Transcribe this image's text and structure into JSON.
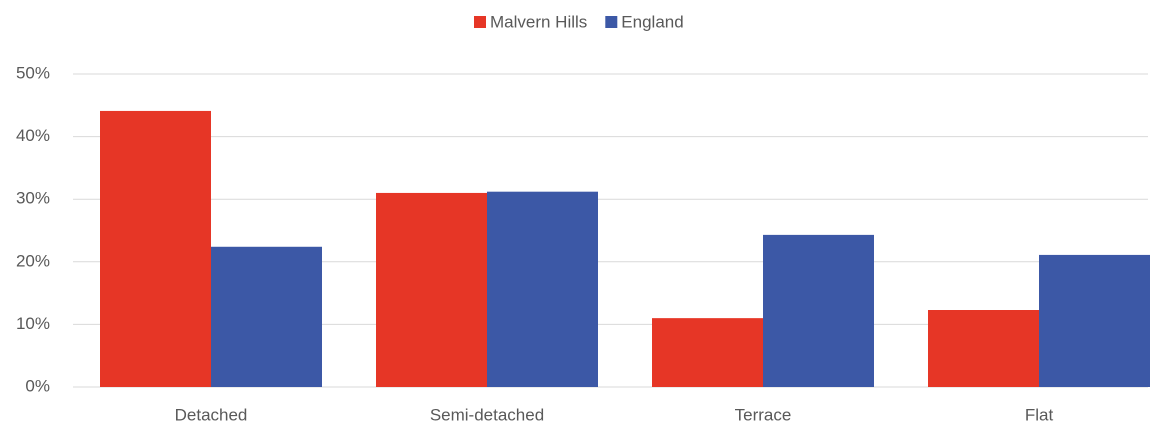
{
  "chart_data": {
    "type": "bar",
    "categories": [
      "Detached",
      "Semi-detached",
      "Terrace",
      "Flat"
    ],
    "series": [
      {
        "name": "Malvern Hills",
        "color": "#e63626",
        "values": [
          44.1,
          31.0,
          11.0,
          12.3
        ]
      },
      {
        "name": "England",
        "color": "#3c58a6",
        "values": [
          22.4,
          31.2,
          24.3,
          21.1
        ]
      }
    ],
    "ylim": [
      0,
      50
    ],
    "yticks": [
      {
        "value": 0,
        "label": "0%"
      },
      {
        "value": 10,
        "label": "10%"
      },
      {
        "value": 20,
        "label": "20%"
      },
      {
        "value": 30,
        "label": "30%"
      },
      {
        "value": 40,
        "label": "40%"
      },
      {
        "value": 50,
        "label": "50%"
      }
    ],
    "grid": true,
    "legend": "top"
  }
}
